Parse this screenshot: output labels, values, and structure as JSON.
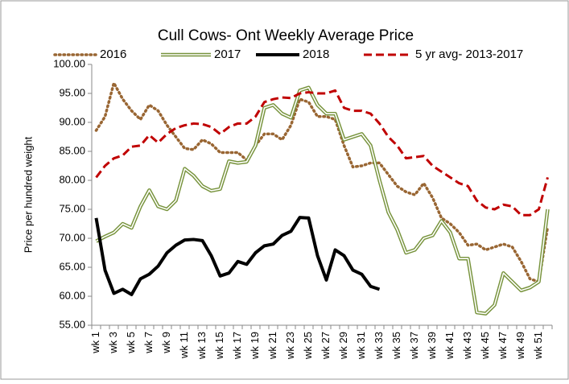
{
  "chart_data": {
    "type": "line",
    "title": "Cull Cows- Ont Weekly Average Price",
    "y_label": "Price per hundred weight",
    "categories": [
      "wk 1",
      null,
      "wk 3",
      null,
      "wk 5",
      null,
      "wk 7",
      null,
      "wk 9",
      null,
      "wk 11",
      null,
      "wk 13",
      null,
      "wk 15",
      null,
      "wk 17",
      null,
      "wk 19",
      null,
      "wk 21",
      null,
      "wk 23",
      null,
      "wk 25",
      null,
      "wk 27",
      null,
      "wk 29",
      null,
      "wk 31",
      null,
      "wk 33",
      null,
      "wk 35",
      null,
      "wk 37",
      null,
      "wk 39",
      null,
      "wk 41",
      null,
      "wk 43",
      null,
      "wk 45",
      null,
      "wk 47",
      null,
      "wk 49",
      null,
      "wk 51",
      null
    ],
    "ylim": [
      55,
      100
    ],
    "yticks": [
      {
        "value": 55,
        "label": "55.00"
      },
      {
        "value": 60,
        "label": "60.00"
      },
      {
        "value": 65,
        "label": "65.00"
      },
      {
        "value": 70,
        "label": "70.00"
      },
      {
        "value": 75,
        "label": "75.00"
      },
      {
        "value": 80,
        "label": "80.00"
      },
      {
        "value": 85,
        "label": "85.00"
      },
      {
        "value": 90,
        "label": "90.00"
      },
      {
        "value": 95,
        "label": "95.00"
      },
      {
        "value": 100,
        "label": "100.00"
      }
    ],
    "grid": false,
    "legend": "top",
    "series": [
      {
        "name": "2016",
        "color": "#996633",
        "line_style": "dotted",
        "values": [
          88.6,
          91,
          96.8,
          94,
          92,
          90.5,
          93,
          92,
          89.5,
          87.5,
          85.5,
          85.3,
          87,
          86.3,
          84.8,
          84.8,
          84.8,
          83.5,
          86,
          88,
          88,
          87,
          89.5,
          94,
          93.5,
          91,
          91,
          90.5,
          86,
          82.3,
          82.5,
          83,
          83,
          81,
          79,
          78,
          77.5,
          79.5,
          77,
          73.5,
          72.5,
          71,
          68.8,
          69,
          68,
          68.5,
          69,
          68.5,
          66,
          63,
          62.5,
          72
        ]
      },
      {
        "name": "2017",
        "color": "#77933c",
        "line_style": "double",
        "values": [
          69.5,
          70.3,
          71,
          72.5,
          71.8,
          75.5,
          78.3,
          75.5,
          75,
          76.5,
          82,
          80.8,
          79,
          78.2,
          78.5,
          83.3,
          83,
          83.2,
          86,
          92.5,
          93,
          91.5,
          90.8,
          95.5,
          96,
          93,
          91.5,
          91.5,
          87,
          87.5,
          88,
          86,
          80,
          74.5,
          71.5,
          67.5,
          68,
          70,
          70.5,
          73,
          71,
          66.5,
          66.5,
          57.2,
          57,
          58.5,
          64,
          62.5,
          61,
          61.5,
          62.5,
          75
        ]
      },
      {
        "name": "2018",
        "color": "#000000",
        "line_style": "thick",
        "values": [
          73.5,
          64.5,
          60.5,
          61.2,
          60.3,
          63,
          63.8,
          65.2,
          67.5,
          68.8,
          69.7,
          69.8,
          69.6,
          67,
          63.5,
          64,
          66,
          65.5,
          67.5,
          68.7,
          69,
          70.5,
          71.2,
          73.6,
          73.5,
          67,
          62.8,
          68,
          67,
          64.5,
          63.8,
          61.7,
          61.2,
          null,
          null,
          null,
          null,
          null,
          null,
          null,
          null,
          null,
          null,
          null,
          null,
          null,
          null,
          null,
          null,
          null,
          null,
          null
        ]
      },
      {
        "name": "5 yr avg- 2013-2017",
        "color": "#c00000",
        "line_style": "dashed",
        "values": [
          80.5,
          82.5,
          83.8,
          84.3,
          85.8,
          86,
          87.8,
          86.5,
          88,
          89,
          89.5,
          89.8,
          89.7,
          89.2,
          88,
          89.2,
          89.8,
          89.8,
          91,
          93.5,
          94,
          94.3,
          94.2,
          95,
          95.2,
          95,
          95,
          95.5,
          92.5,
          92,
          92,
          91.5,
          89.8,
          87.5,
          86,
          83.8,
          84,
          84.2,
          82.5,
          81.5,
          80.5,
          79.5,
          79,
          76.5,
          75.3,
          75,
          75.8,
          75.5,
          74,
          74,
          75,
          80.5
        ]
      }
    ]
  }
}
